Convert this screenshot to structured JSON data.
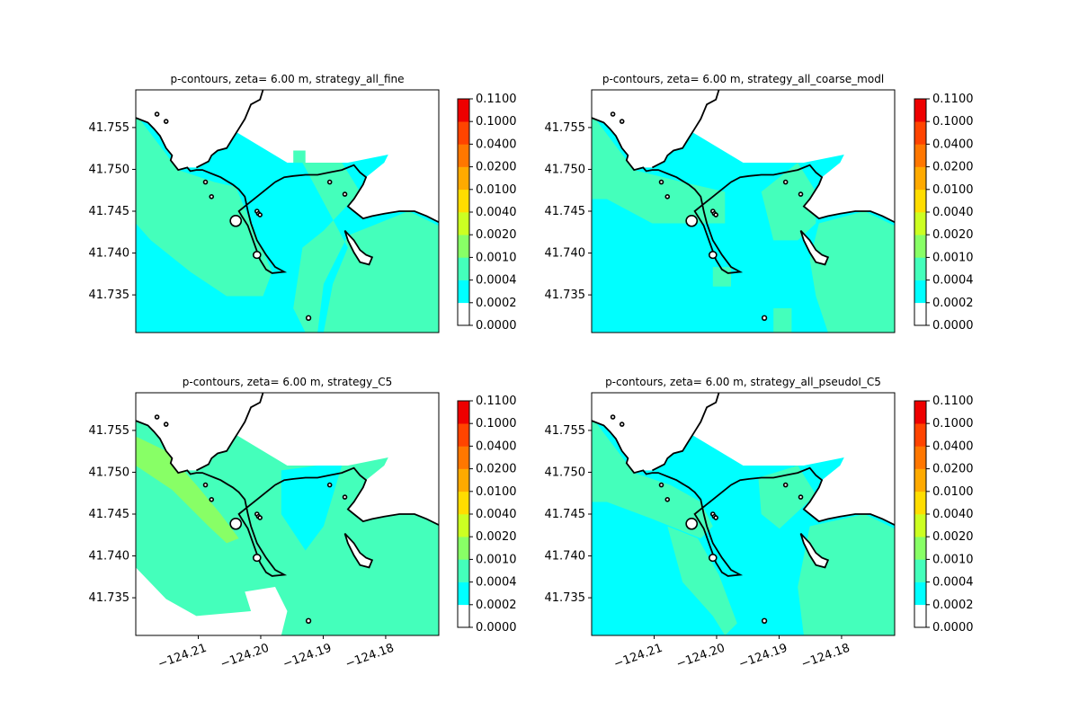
{
  "colorbar": {
    "levels": [
      "0.0000",
      "0.0002",
      "0.0004",
      "0.0010",
      "0.0020",
      "0.0040",
      "0.0100",
      "0.0200",
      "0.0400",
      "0.1000",
      "0.1100"
    ],
    "colors": [
      "#ffffff",
      "#00ffff",
      "#44ffbb",
      "#88ff66",
      "#ccff22",
      "#ffdd00",
      "#ffaa00",
      "#ff7700",
      "#ff4400",
      "#ee0000"
    ]
  },
  "land_color": "#ffffff",
  "coast_color": "#000000",
  "chart_data": [
    {
      "type": "heatmap",
      "title": "p-contours, zeta= 6.00 m, strategy_all_fine",
      "xlabel": "",
      "ylabel": "",
      "xlim": [
        -124.22,
        -124.1715
      ],
      "ylim": [
        41.7305,
        41.7595
      ],
      "x_ticks": [
        "−124.21",
        "−124.20",
        "−124.19",
        "−124.18"
      ],
      "x_ticks_shown": false,
      "y_ticks": [
        "41.735",
        "41.740",
        "41.745",
        "41.750",
        "41.755"
      ],
      "pattern": "fine"
    },
    {
      "type": "heatmap",
      "title": "p-contours, zeta= 6.00 m, strategy_all_coarse_modl",
      "xlabel": "",
      "ylabel": "",
      "xlim": [
        -124.22,
        -124.1715
      ],
      "ylim": [
        41.7305,
        41.7595
      ],
      "x_ticks": [
        "−124.21",
        "−124.20",
        "−124.19",
        "−124.18"
      ],
      "x_ticks_shown": false,
      "y_ticks": [
        "41.735",
        "41.740",
        "41.745",
        "41.750",
        "41.755"
      ],
      "pattern": "coarse"
    },
    {
      "type": "heatmap",
      "title": "p-contours, zeta= 6.00 m, strategy_C5",
      "xlabel": "",
      "ylabel": "",
      "xlim": [
        -124.22,
        -124.1715
      ],
      "ylim": [
        41.7305,
        41.7595
      ],
      "x_ticks": [
        "−124.21",
        "−124.20",
        "−124.19",
        "−124.18"
      ],
      "x_ticks_shown": true,
      "y_ticks": [
        "41.735",
        "41.740",
        "41.745",
        "41.750",
        "41.755"
      ],
      "pattern": "c5"
    },
    {
      "type": "heatmap",
      "title": "p-contours, zeta= 6.00 m, strategy_all_pseudoI_C5",
      "xlabel": "",
      "ylabel": "",
      "xlim": [
        -124.22,
        -124.1715
      ],
      "ylim": [
        41.7305,
        41.7595
      ],
      "x_ticks": [
        "−124.21",
        "−124.20",
        "−124.19",
        "−124.18"
      ],
      "x_ticks_shown": true,
      "y_ticks": [
        "41.735",
        "41.740",
        "41.745",
        "41.750",
        "41.755"
      ],
      "pattern": "pseudo"
    }
  ]
}
